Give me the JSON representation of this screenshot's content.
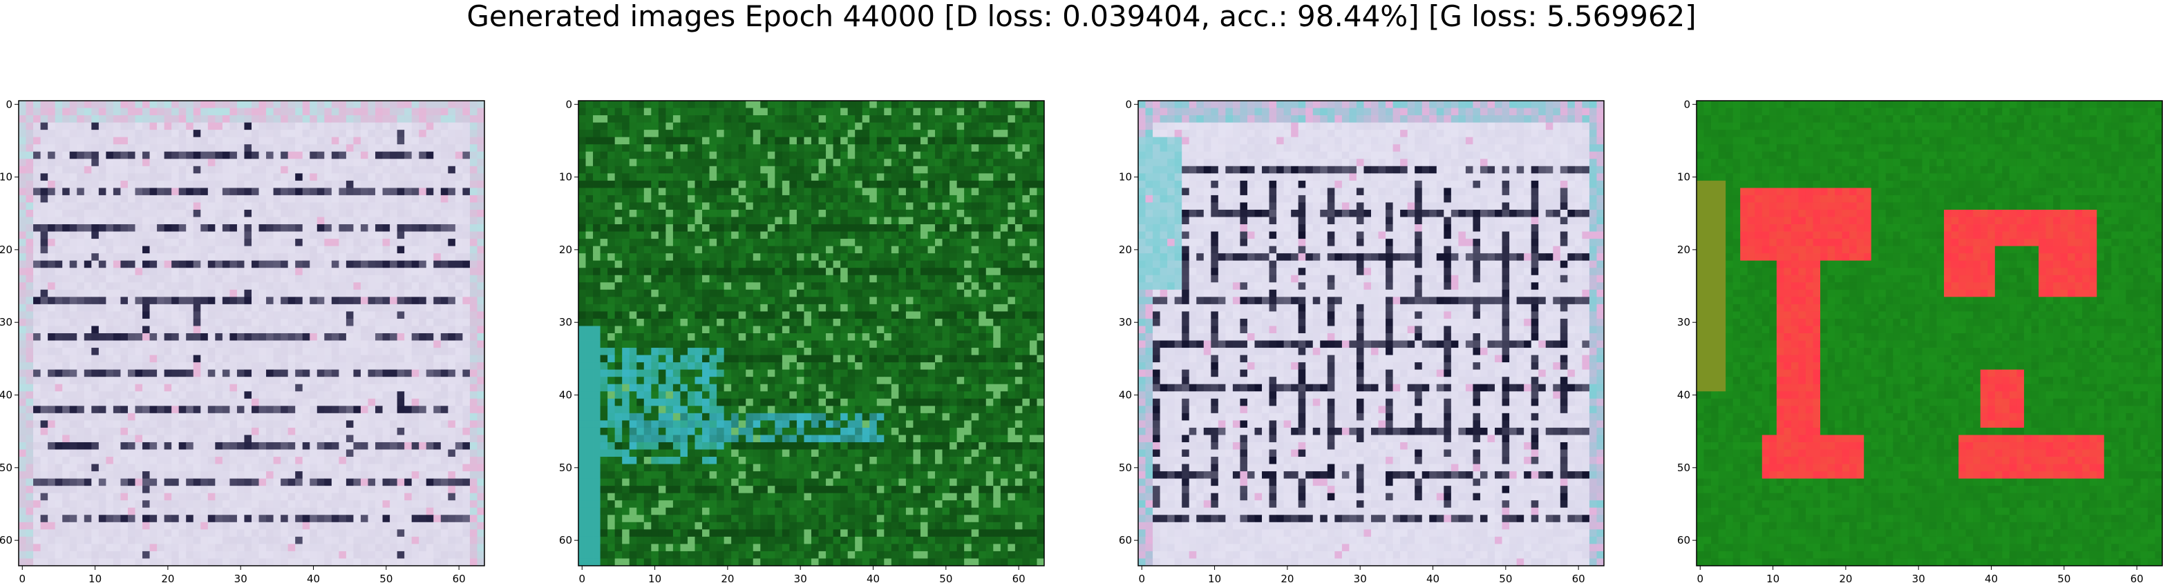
{
  "suptitle": "Generated images Epoch 44000 [D loss: 0.039404, acc.: 98.44%] [G loss: 5.569962]",
  "chart_data": [
    {
      "type": "image",
      "variant": "document-like",
      "palette": {
        "base": "#d7d2e6",
        "stripe": "#1c1a3c",
        "accent": "#b7e0e4",
        "pink": "#e6b6d8"
      },
      "xlim": [
        0,
        63
      ],
      "ylim": [
        63,
        0
      ],
      "xticks": [
        0,
        10,
        20,
        30,
        40,
        50,
        60
      ],
      "yticks": [
        0,
        10,
        20,
        30,
        40,
        50,
        60
      ],
      "tick_labels": [
        "0",
        "10",
        "20",
        "30",
        "40",
        "50",
        "60"
      ]
    },
    {
      "type": "image",
      "variant": "green-noise",
      "palette": {
        "base": "#1f8a25",
        "dark": "#0b3d10",
        "cyan": "#3ab6c4",
        "light": "#8fd08a"
      },
      "xlim": [
        0,
        63
      ],
      "ylim": [
        63,
        0
      ],
      "xticks": [
        0,
        10,
        20,
        30,
        40,
        50,
        60
      ],
      "yticks": [
        0,
        10,
        20,
        30,
        40,
        50,
        60
      ],
      "tick_labels": [
        "0",
        "10",
        "20",
        "30",
        "40",
        "50",
        "60"
      ]
    },
    {
      "type": "image",
      "variant": "document-like-columns",
      "palette": {
        "base": "#d9d6ea",
        "stripe": "#12122e",
        "accent": "#7fcfd6",
        "pink": "#e3b3dc"
      },
      "xlim": [
        0,
        63
      ],
      "ylim": [
        63,
        0
      ],
      "xticks": [
        0,
        10,
        20,
        30,
        40,
        50,
        60
      ],
      "yticks": [
        0,
        10,
        20,
        30,
        40,
        50,
        60
      ],
      "tick_labels": [
        "0",
        "10",
        "20",
        "30",
        "40",
        "50",
        "60"
      ]
    },
    {
      "type": "image",
      "variant": "green-red-blobs",
      "palette": {
        "base": "#1e9a1e",
        "blob": "#ff3a4a",
        "edge": "#d98a2a",
        "dark": "#0f5a12"
      },
      "xlim": [
        0,
        63
      ],
      "ylim": [
        63,
        0
      ],
      "xticks": [
        0,
        10,
        20,
        30,
        40,
        50,
        60
      ],
      "yticks": [
        0,
        10,
        20,
        30,
        40,
        50,
        60
      ],
      "tick_labels": [
        "0",
        "10",
        "20",
        "30",
        "40",
        "50",
        "60"
      ]
    }
  ]
}
